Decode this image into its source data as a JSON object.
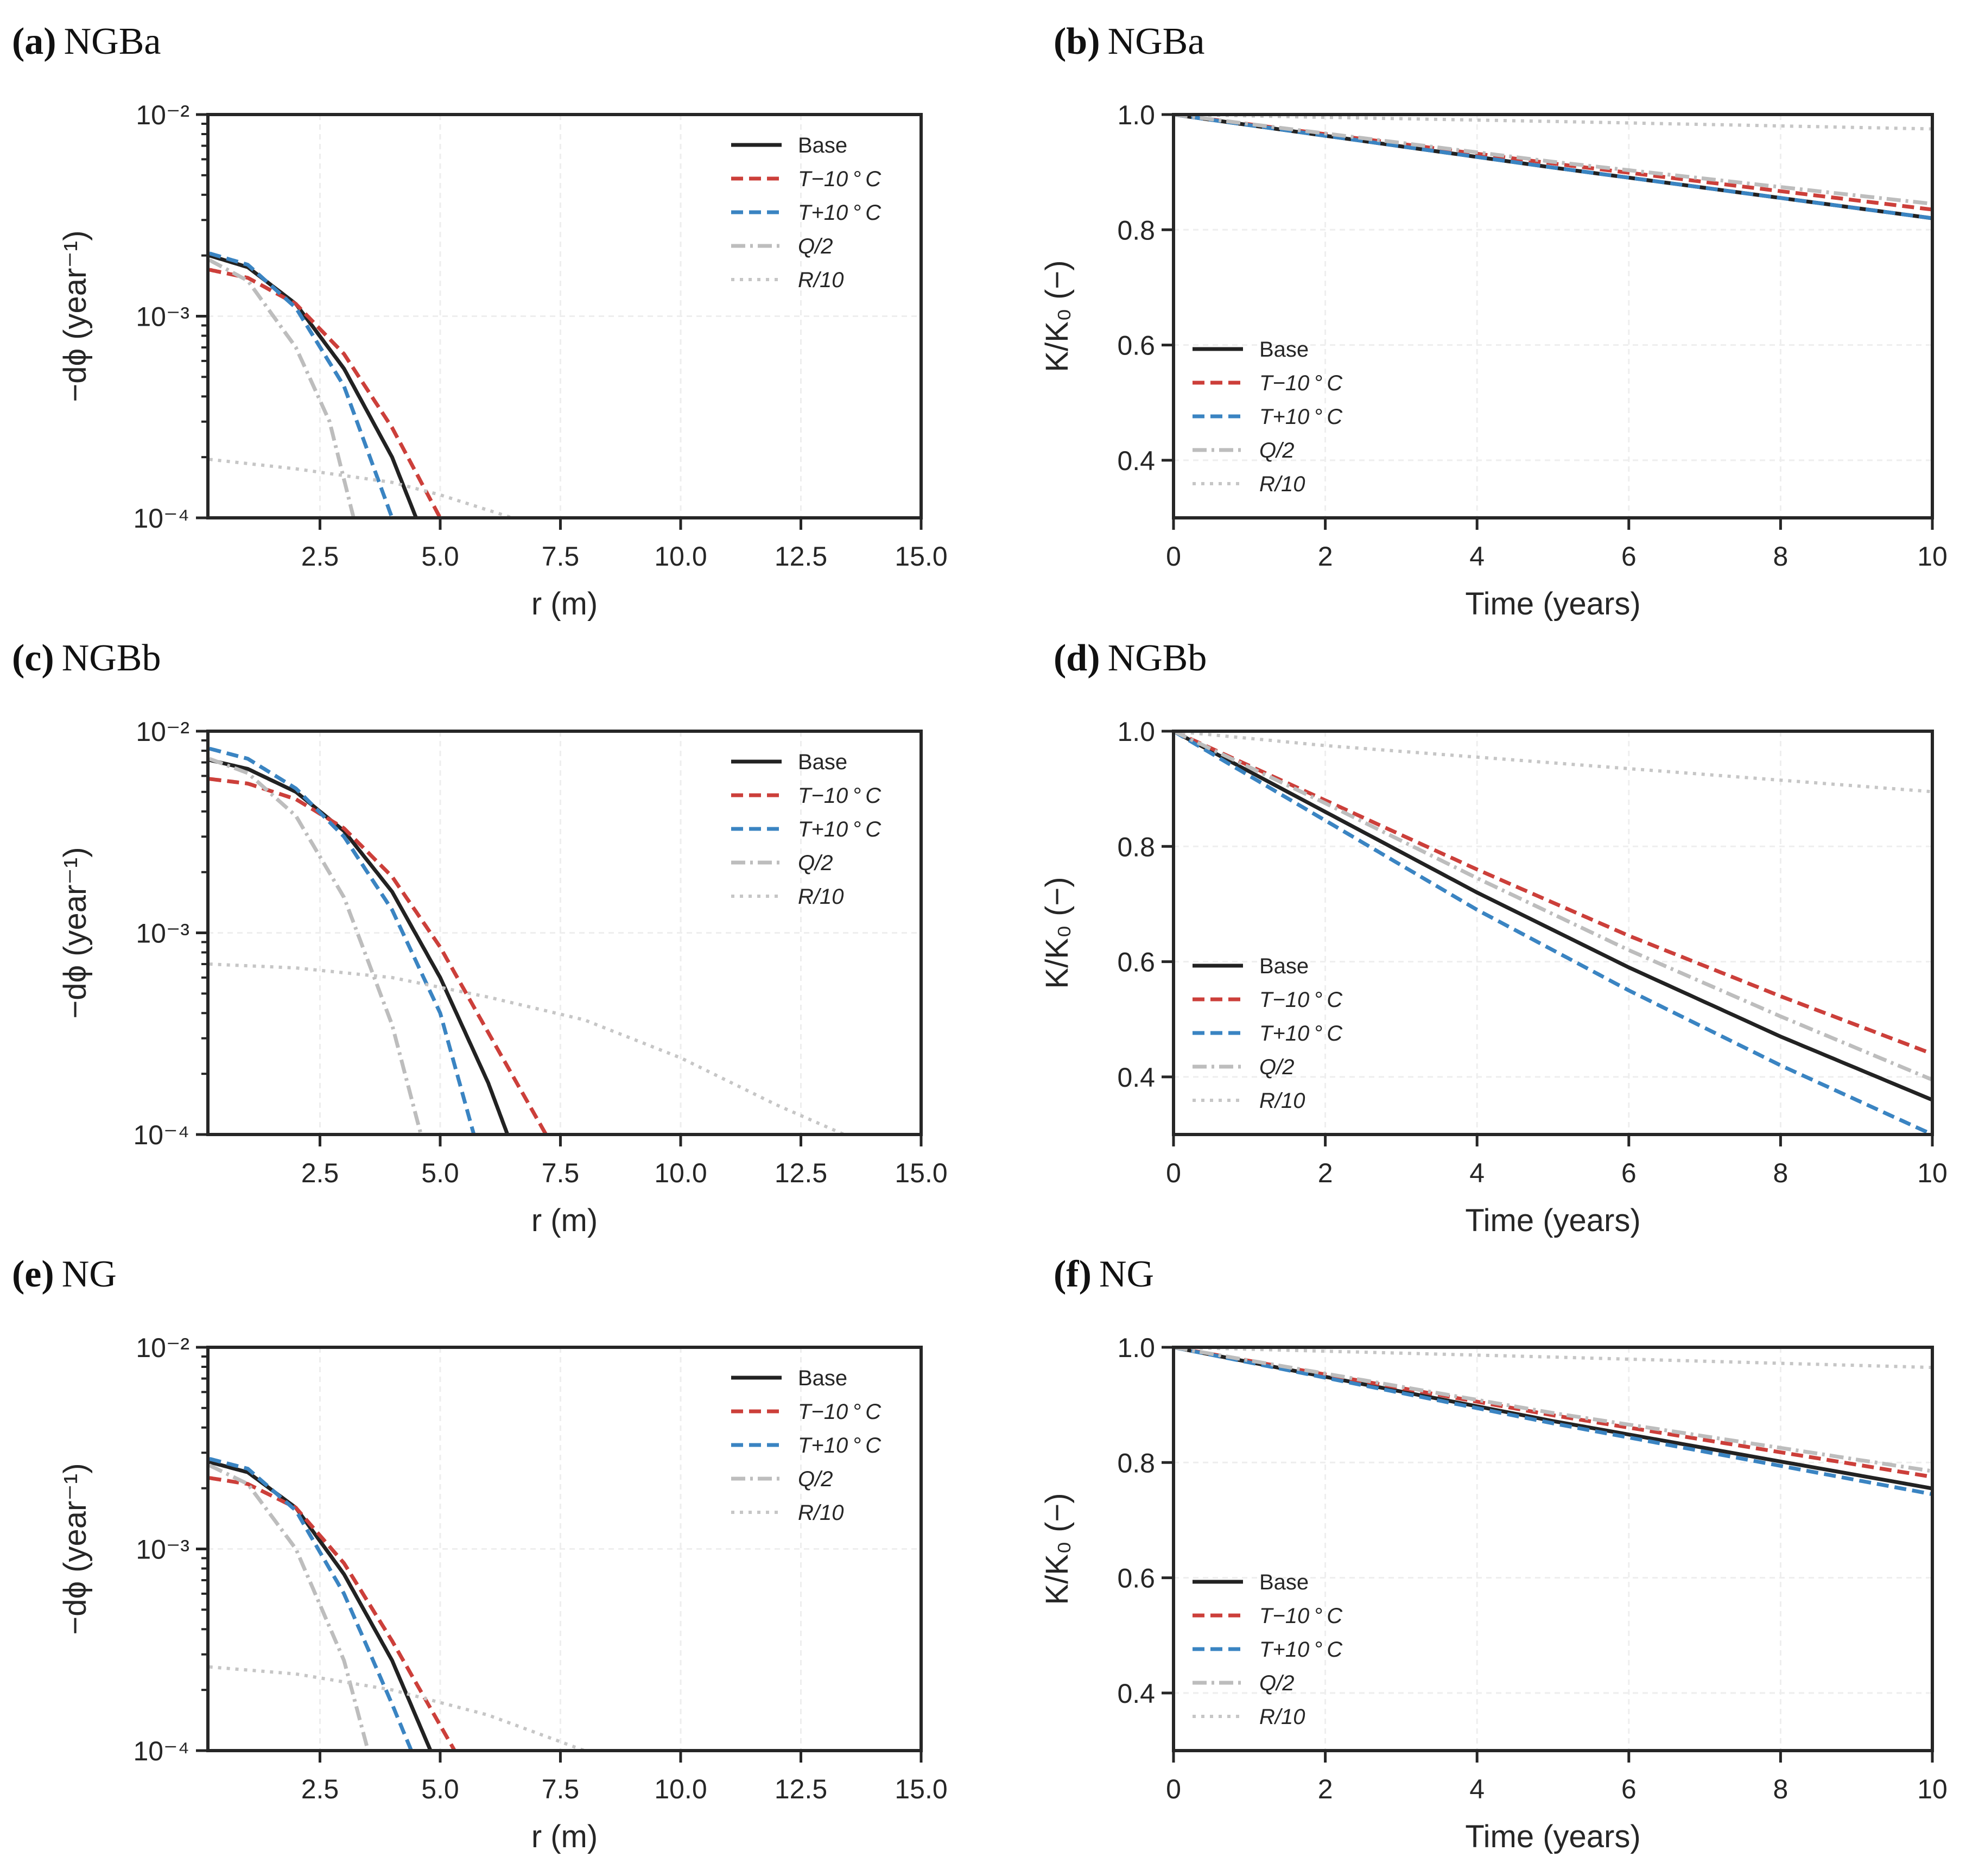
{
  "colors": {
    "Base": "#222222",
    "T-10": "#cc3f3a",
    "T+10": "#3a84c2",
    "Q/2": "#bdbdbd",
    "R/10": "#c6c6c6"
  },
  "legend_labels": [
    "Base",
    "T−10 ° C",
    "T+10 ° C",
    "Q/2",
    "R/10"
  ],
  "chart_data": [
    {
      "id": "a",
      "panel_letter": "(a)",
      "panel_name": "NGBa",
      "type": "line",
      "yscale": "log",
      "xlabel": "r (m)",
      "ylabel": "−dϕ (year⁻¹)",
      "xlim": [
        0.17,
        15
      ],
      "ylim": [
        0.0001,
        0.01
      ],
      "xticks": [
        "2.5",
        "5.0",
        "7.5",
        "10.0",
        "12.5",
        "15.0"
      ],
      "yticks": [
        "10⁻⁴",
        "10⁻³",
        "10⁻²"
      ],
      "legend": "upper-right",
      "series": [
        {
          "name": "Base",
          "points": [
            [
              0.2,
              0.002
            ],
            [
              1,
              0.00175
            ],
            [
              2,
              0.00115
            ],
            [
              3,
              0.00055
            ],
            [
              4,
              0.0002
            ],
            [
              4.5,
              0.0001
            ]
          ]
        },
        {
          "name": "T-10",
          "points": [
            [
              0.2,
              0.0017
            ],
            [
              1,
              0.00155
            ],
            [
              2,
              0.00115
            ],
            [
              3,
              0.00065
            ],
            [
              4,
              0.00028
            ],
            [
              5,
              0.0001
            ]
          ]
        },
        {
          "name": "T+10",
          "points": [
            [
              0.2,
              0.00205
            ],
            [
              1,
              0.0018
            ],
            [
              2,
              0.0011
            ],
            [
              3,
              0.00045
            ],
            [
              4,
              0.0001
            ]
          ]
        },
        {
          "name": "Q/2",
          "points": [
            [
              0.2,
              0.0019
            ],
            [
              1,
              0.0015
            ],
            [
              2,
              0.0007
            ],
            [
              2.7,
              0.0003
            ],
            [
              3.2,
              0.0001
            ]
          ]
        },
        {
          "name": "R/10",
          "points": [
            [
              0.2,
              0.000195
            ],
            [
              2,
              0.000175
            ],
            [
              4,
              0.00015
            ],
            [
              5,
              0.00013
            ],
            [
              6.5,
              0.0001
            ]
          ]
        }
      ]
    },
    {
      "id": "b",
      "panel_letter": "(b)",
      "panel_name": "NGBa",
      "type": "line",
      "yscale": "linear",
      "xlabel": "Time (years)",
      "ylabel": "K/K₀ (−)",
      "xlim": [
        0,
        10
      ],
      "ylim": [
        0.3,
        1.0
      ],
      "xticks": [
        "0",
        "2",
        "4",
        "6",
        "8",
        "10"
      ],
      "yticks": [
        "0.4",
        "0.6",
        "0.8",
        "1.0"
      ],
      "legend": "lower-left",
      "series": [
        {
          "name": "Base",
          "points": [
            [
              0,
              1
            ],
            [
              5,
              0.908
            ],
            [
              10,
              0.82
            ]
          ]
        },
        {
          "name": "T-10",
          "points": [
            [
              0,
              1
            ],
            [
              5,
              0.915
            ],
            [
              10,
              0.835
            ]
          ]
        },
        {
          "name": "T+10",
          "points": [
            [
              0,
              1
            ],
            [
              5,
              0.908
            ],
            [
              10,
              0.82
            ]
          ]
        },
        {
          "name": "Q/2",
          "points": [
            [
              0,
              1
            ],
            [
              5,
              0.918
            ],
            [
              10,
              0.845
            ]
          ]
        },
        {
          "name": "R/10",
          "points": [
            [
              0,
              1
            ],
            [
              5,
              0.988
            ],
            [
              10,
              0.975
            ]
          ]
        }
      ]
    },
    {
      "id": "c",
      "panel_letter": "(c)",
      "panel_name": "NGBb",
      "type": "line",
      "yscale": "log",
      "xlabel": "r (m)",
      "ylabel": "−dϕ (year⁻¹)",
      "xlim": [
        0.17,
        15
      ],
      "ylim": [
        0.0001,
        0.01
      ],
      "xticks": [
        "2.5",
        "5.0",
        "7.5",
        "10.0",
        "12.5",
        "15.0"
      ],
      "yticks": [
        "10⁻⁴",
        "10⁻³",
        "10⁻²"
      ],
      "legend": "upper-right",
      "series": [
        {
          "name": "Base",
          "points": [
            [
              0.2,
              0.0072
            ],
            [
              1,
              0.0065
            ],
            [
              2,
              0.005
            ],
            [
              3,
              0.0032
            ],
            [
              4,
              0.0016
            ],
            [
              5,
              0.0006
            ],
            [
              6,
              0.00018
            ],
            [
              6.4,
              0.0001
            ]
          ]
        },
        {
          "name": "T-10",
          "points": [
            [
              0.2,
              0.0058
            ],
            [
              1,
              0.0055
            ],
            [
              2,
              0.0046
            ],
            [
              3,
              0.0033
            ],
            [
              4,
              0.0019
            ],
            [
              5,
              0.00085
            ],
            [
              6,
              0.00032
            ],
            [
              7.2,
              0.0001
            ]
          ]
        },
        {
          "name": "T+10",
          "points": [
            [
              0.2,
              0.0082
            ],
            [
              1,
              0.0073
            ],
            [
              2,
              0.0052
            ],
            [
              3,
              0.003
            ],
            [
              4,
              0.0013
            ],
            [
              5,
              0.0004
            ],
            [
              5.7,
              0.0001
            ]
          ]
        },
        {
          "name": "Q/2",
          "points": [
            [
              0.2,
              0.0073
            ],
            [
              1,
              0.0062
            ],
            [
              2,
              0.0038
            ],
            [
              3,
              0.0015
            ],
            [
              4,
              0.00035
            ],
            [
              4.6,
              0.0001
            ]
          ]
        },
        {
          "name": "R/10",
          "points": [
            [
              0.2,
              0.0007
            ],
            [
              2,
              0.00067
            ],
            [
              4,
              0.0006
            ],
            [
              6,
              0.00048
            ],
            [
              8,
              0.00037
            ],
            [
              10,
              0.00024
            ],
            [
              12,
              0.00014
            ],
            [
              13.4,
              0.0001
            ]
          ]
        }
      ]
    },
    {
      "id": "d",
      "panel_letter": "(d)",
      "panel_name": "NGBb",
      "type": "line",
      "yscale": "linear",
      "xlabel": "Time (years)",
      "ylabel": "K/K₀ (−)",
      "xlim": [
        0,
        10
      ],
      "ylim": [
        0.3,
        1.0
      ],
      "xticks": [
        "0",
        "2",
        "4",
        "6",
        "8",
        "10"
      ],
      "yticks": [
        "0.4",
        "0.6",
        "0.8",
        "1.0"
      ],
      "legend": "lower-left",
      "series": [
        {
          "name": "Base",
          "points": [
            [
              0,
              1
            ],
            [
              2,
              0.86
            ],
            [
              4,
              0.72
            ],
            [
              6,
              0.59
            ],
            [
              8,
              0.47
            ],
            [
              10,
              0.36
            ]
          ]
        },
        {
          "name": "T-10",
          "points": [
            [
              0,
              1
            ],
            [
              2,
              0.88
            ],
            [
              4,
              0.76
            ],
            [
              6,
              0.645
            ],
            [
              8,
              0.54
            ],
            [
              10,
              0.44
            ]
          ]
        },
        {
          "name": "T+10",
          "points": [
            [
              0,
              1
            ],
            [
              2,
              0.845
            ],
            [
              4,
              0.69
            ],
            [
              6,
              0.55
            ],
            [
              8,
              0.42
            ],
            [
              10,
              0.3
            ]
          ]
        },
        {
          "name": "Q/2",
          "points": [
            [
              0,
              1
            ],
            [
              2,
              0.875
            ],
            [
              4,
              0.745
            ],
            [
              6,
              0.62
            ],
            [
              8,
              0.505
            ],
            [
              10,
              0.395
            ]
          ]
        },
        {
          "name": "R/10",
          "points": [
            [
              0,
              1
            ],
            [
              2,
              0.975
            ],
            [
              4,
              0.955
            ],
            [
              6,
              0.935
            ],
            [
              8,
              0.915
            ],
            [
              10,
              0.895
            ]
          ]
        }
      ]
    },
    {
      "id": "e",
      "panel_letter": "(e)",
      "panel_name": "NG",
      "type": "line",
      "yscale": "log",
      "xlabel": "r (m)",
      "ylabel": "−dϕ (year⁻¹)",
      "xlim": [
        0.17,
        15
      ],
      "ylim": [
        0.0001,
        0.01
      ],
      "xticks": [
        "2.5",
        "5.0",
        "7.5",
        "10.0",
        "12.5",
        "15.0"
      ],
      "yticks": [
        "10⁻⁴",
        "10⁻³",
        "10⁻²"
      ],
      "legend": "upper-right",
      "series": [
        {
          "name": "Base",
          "points": [
            [
              0.2,
              0.0027
            ],
            [
              1,
              0.0024
            ],
            [
              2,
              0.0016
            ],
            [
              3,
              0.00075
            ],
            [
              4,
              0.00028
            ],
            [
              4.8,
              0.0001
            ]
          ]
        },
        {
          "name": "T-10",
          "points": [
            [
              0.2,
              0.00225
            ],
            [
              1,
              0.0021
            ],
            [
              2,
              0.0016
            ],
            [
              3,
              0.00085
            ],
            [
              4,
              0.00035
            ],
            [
              5.3,
              0.0001
            ]
          ]
        },
        {
          "name": "T+10",
          "points": [
            [
              0.2,
              0.0028
            ],
            [
              1,
              0.0025
            ],
            [
              2,
              0.00155
            ],
            [
              3,
              0.0006
            ],
            [
              4,
              0.00017
            ],
            [
              4.4,
              0.0001
            ]
          ]
        },
        {
          "name": "Q/2",
          "points": [
            [
              0.2,
              0.0026
            ],
            [
              1,
              0.0021
            ],
            [
              2,
              0.001
            ],
            [
              3,
              0.00028
            ],
            [
              3.5,
              0.0001
            ]
          ]
        },
        {
          "name": "R/10",
          "points": [
            [
              0.2,
              0.00026
            ],
            [
              2,
              0.00024
            ],
            [
              4,
              0.0002
            ],
            [
              6,
              0.00015
            ],
            [
              8,
              0.0001
            ]
          ]
        }
      ]
    },
    {
      "id": "f",
      "panel_letter": "(f)",
      "panel_name": "NG",
      "type": "line",
      "yscale": "linear",
      "xlabel": "Time (years)",
      "ylabel": "K/K₀ (−)",
      "xlim": [
        0,
        10
      ],
      "ylim": [
        0.3,
        1.0
      ],
      "xticks": [
        "0",
        "2",
        "4",
        "6",
        "8",
        "10"
      ],
      "yticks": [
        "0.4",
        "0.6",
        "0.8",
        "1.0"
      ],
      "legend": "lower-left",
      "series": [
        {
          "name": "Base",
          "points": [
            [
              0,
              1
            ],
            [
              5,
              0.872
            ],
            [
              10,
              0.755
            ]
          ]
        },
        {
          "name": "T-10",
          "points": [
            [
              0,
              1
            ],
            [
              5,
              0.882
            ],
            [
              10,
              0.775
            ]
          ]
        },
        {
          "name": "T+10",
          "points": [
            [
              0,
              1
            ],
            [
              5,
              0.868
            ],
            [
              10,
              0.745
            ]
          ]
        },
        {
          "name": "Q/2",
          "points": [
            [
              0,
              1
            ],
            [
              5,
              0.886
            ],
            [
              10,
              0.785
            ]
          ]
        },
        {
          "name": "R/10",
          "points": [
            [
              0,
              1
            ],
            [
              5,
              0.983
            ],
            [
              10,
              0.965
            ]
          ]
        }
      ]
    }
  ]
}
